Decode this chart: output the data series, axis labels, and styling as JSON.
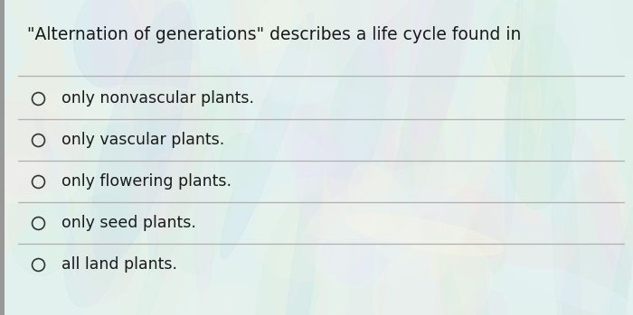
{
  "title": "\"Alternation of generations\" describes a life cycle found in",
  "options": [
    "only nonvascular plants.",
    "only vascular plants.",
    "only flowering plants.",
    "only seed plants.",
    "all land plants."
  ],
  "line_color": "#b0b0b0",
  "text_color": "#1a1a1a",
  "title_fontsize": 13.5,
  "option_fontsize": 12.5,
  "figsize": [
    7.0,
    3.49
  ],
  "dpi": 100
}
